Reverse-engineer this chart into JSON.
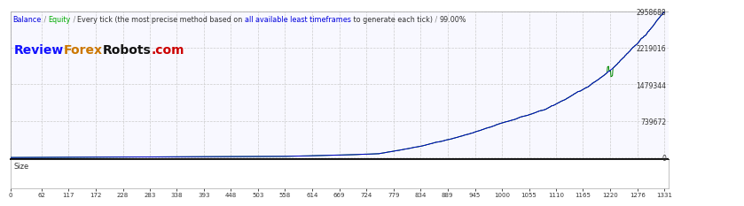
{
  "title_segments": [
    {
      "text": "Balance",
      "color": "#0000dd"
    },
    {
      "text": " / ",
      "color": "#888888"
    },
    {
      "text": "Equity",
      "color": "#00aa00"
    },
    {
      "text": " / ",
      "color": "#888888"
    },
    {
      "text": "Every tick (the most precise method based on ",
      "color": "#333333"
    },
    {
      "text": "all available least timeframes",
      "color": "#0000dd"
    },
    {
      "text": " to generate each tick)",
      "color": "#333333"
    },
    {
      "text": " / ",
      "color": "#888888"
    },
    {
      "text": "99.00%",
      "color": "#333333"
    }
  ],
  "watermark_segments": [
    {
      "text": "Review",
      "color": "#1111ff"
    },
    {
      "text": "Forex",
      "color": "#cc7700"
    },
    {
      "text": "Robots",
      "color": "#111111"
    },
    {
      "text": ".com",
      "color": "#cc0000"
    }
  ],
  "x_ticks": [
    0,
    62,
    117,
    172,
    228,
    283,
    338,
    393,
    448,
    503,
    558,
    614,
    669,
    724,
    779,
    834,
    889,
    945,
    1000,
    1055,
    1110,
    1165,
    1220,
    1276,
    1331
  ],
  "y_ticks": [
    0,
    739672,
    1479344,
    2219016,
    2958688
  ],
  "y_labels": [
    "0",
    "739672",
    "1479344",
    "2219016",
    "2958688"
  ],
  "xlim": [
    0,
    1340
  ],
  "ylim_main": [
    -30000,
    2958688
  ],
  "size_label": "Size",
  "bg_color": "#ffffff",
  "grid_color": "#cccccc",
  "line_color_balance": "#0000cc",
  "line_color_equity": "#008800",
  "title_fontsize": 5.8,
  "watermark_fontsize": 10,
  "xtick_fontsize": 5.0,
  "ytick_fontsize": 5.5
}
